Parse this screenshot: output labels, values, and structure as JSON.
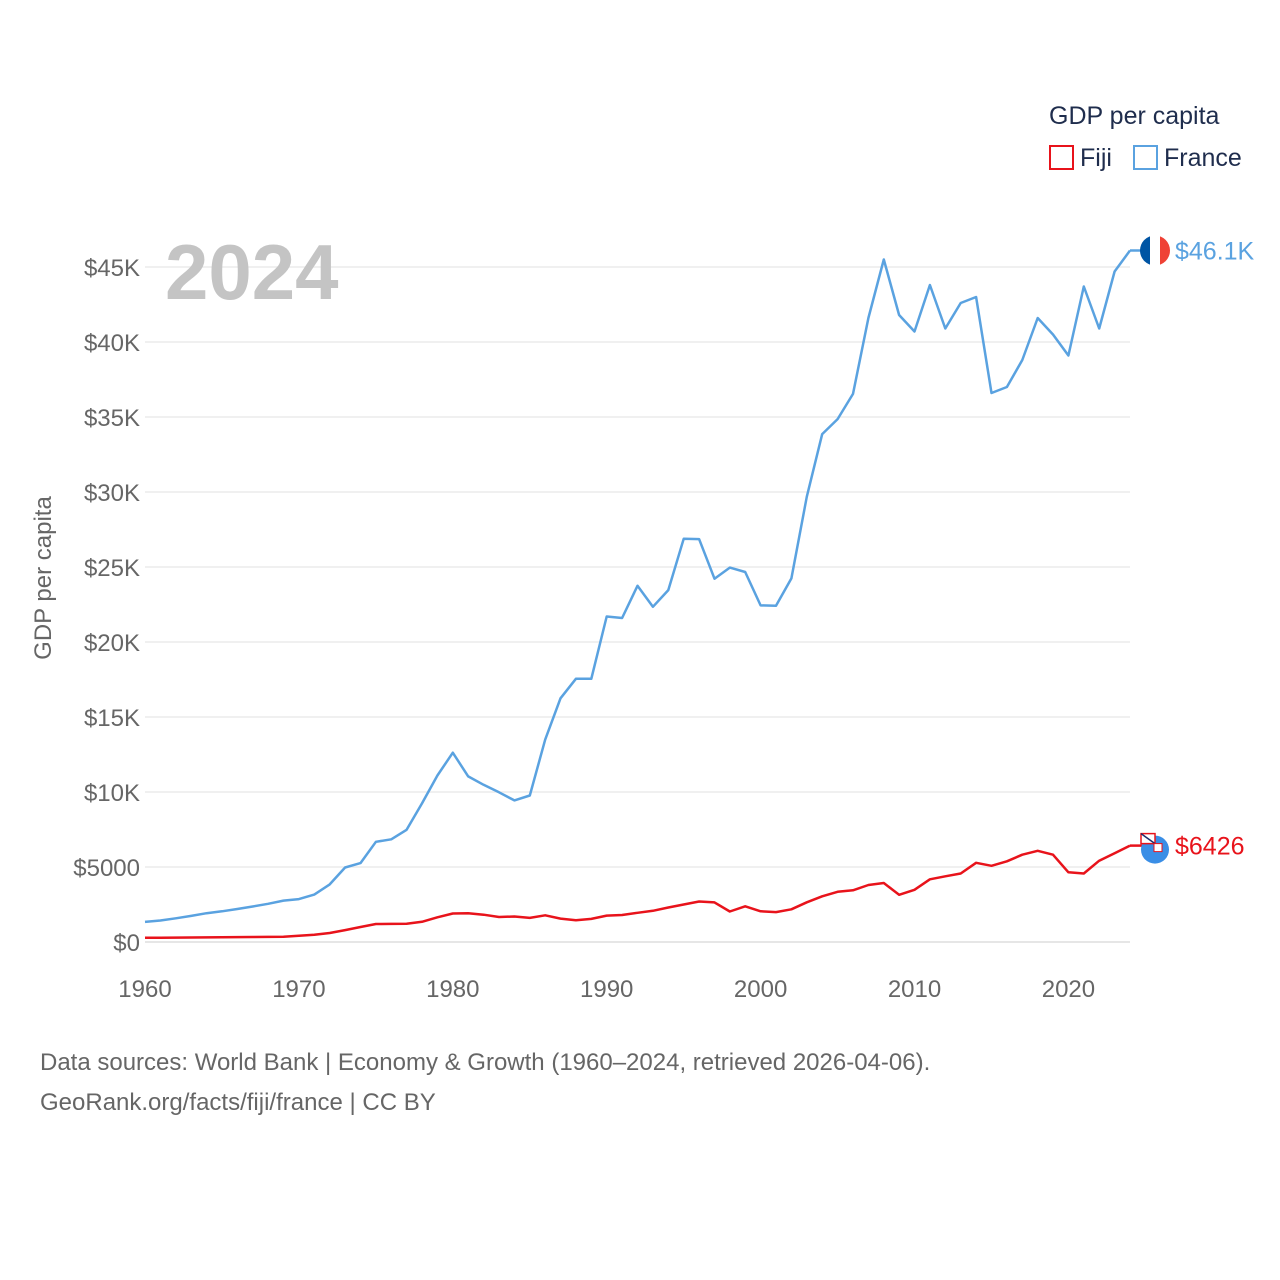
{
  "chart_data": {
    "type": "line",
    "title": "GDP per capita",
    "year_label": "2024",
    "ylabel": "GDP per capita",
    "xlabel": "",
    "xlim": [
      1960,
      2024
    ],
    "ylim": [
      0,
      46500
    ],
    "y_ticks": [
      {
        "value": 0,
        "label": "$0"
      },
      {
        "value": 5000,
        "label": "$5000"
      },
      {
        "value": 10000,
        "label": "$10K"
      },
      {
        "value": 15000,
        "label": "$15K"
      },
      {
        "value": 20000,
        "label": "$20K"
      },
      {
        "value": 25000,
        "label": "$25K"
      },
      {
        "value": 30000,
        "label": "$30K"
      },
      {
        "value": 35000,
        "label": "$35K"
      },
      {
        "value": 40000,
        "label": "$40K"
      },
      {
        "value": 45000,
        "label": "$45K"
      }
    ],
    "x_ticks": [
      {
        "value": 1960,
        "label": "1960"
      },
      {
        "value": 1970,
        "label": "1970"
      },
      {
        "value": 1980,
        "label": "1980"
      },
      {
        "value": 1990,
        "label": "1990"
      },
      {
        "value": 2000,
        "label": "2000"
      },
      {
        "value": 2010,
        "label": "2010"
      },
      {
        "value": 2020,
        "label": "2020"
      }
    ],
    "legend": {
      "title": "GDP per capita",
      "position": "top-right"
    },
    "x": [
      1960,
      1961,
      1962,
      1963,
      1964,
      1965,
      1966,
      1967,
      1968,
      1969,
      1970,
      1971,
      1972,
      1973,
      1974,
      1975,
      1976,
      1977,
      1978,
      1979,
      1980,
      1981,
      1982,
      1983,
      1984,
      1985,
      1986,
      1987,
      1988,
      1989,
      1990,
      1991,
      1992,
      1993,
      1994,
      1995,
      1996,
      1997,
      1998,
      1999,
      2000,
      2001,
      2002,
      2003,
      2004,
      2005,
      2006,
      2007,
      2008,
      2009,
      2010,
      2011,
      2012,
      2013,
      2014,
      2015,
      2016,
      2017,
      2018,
      2019,
      2020,
      2021,
      2022,
      2023,
      2024
    ],
    "series": [
      {
        "name": "Fiji",
        "color": "#e8131b",
        "end_label": "$6426",
        "flag": "fiji-flag",
        "values": [
          280,
          285,
          290,
          300,
          310,
          315,
          325,
          335,
          340,
          345,
          420,
          480,
          600,
          790,
          1000,
          1200,
          1210,
          1220,
          1350,
          1650,
          1900,
          1920,
          1820,
          1670,
          1700,
          1610,
          1780,
          1560,
          1450,
          1540,
          1760,
          1800,
          1950,
          2080,
          2300,
          2500,
          2700,
          2640,
          2030,
          2380,
          2050,
          1990,
          2180,
          2650,
          3050,
          3350,
          3450,
          3800,
          3930,
          3150,
          3480,
          4180,
          4380,
          4570,
          5280,
          5080,
          5380,
          5820,
          6080,
          5820,
          4650,
          4570,
          5420,
          5920,
          6426
        ]
      },
      {
        "name": "France",
        "color": "#5aa2e0",
        "end_label": "$46.1K",
        "flag": "france-flag",
        "values": [
          1340,
          1430,
          1580,
          1740,
          1920,
          2050,
          2200,
          2370,
          2550,
          2760,
          2860,
          3160,
          3840,
          4970,
          5260,
          6680,
          6850,
          7480,
          9240,
          11100,
          12620,
          11040,
          10480,
          9980,
          9440,
          9770,
          13490,
          16250,
          17550,
          17550,
          21700,
          21600,
          23750,
          22350,
          23460,
          26880,
          26860,
          24220,
          24960,
          24670,
          22440,
          22420,
          24240,
          29690,
          33860,
          34860,
          36540,
          41600,
          45500,
          41800,
          40700,
          43800,
          40900,
          42600,
          43000,
          36600,
          37000,
          38800,
          41600,
          40500,
          39100,
          43700,
          40900,
          44700,
          46100
        ]
      }
    ]
  },
  "source": {
    "line1": "Data sources: World Bank | Economy & Growth (1960–2024, retrieved 2026-04-06).",
    "line2": "GeoRank.org/facts/fiji/france | CC BY"
  }
}
